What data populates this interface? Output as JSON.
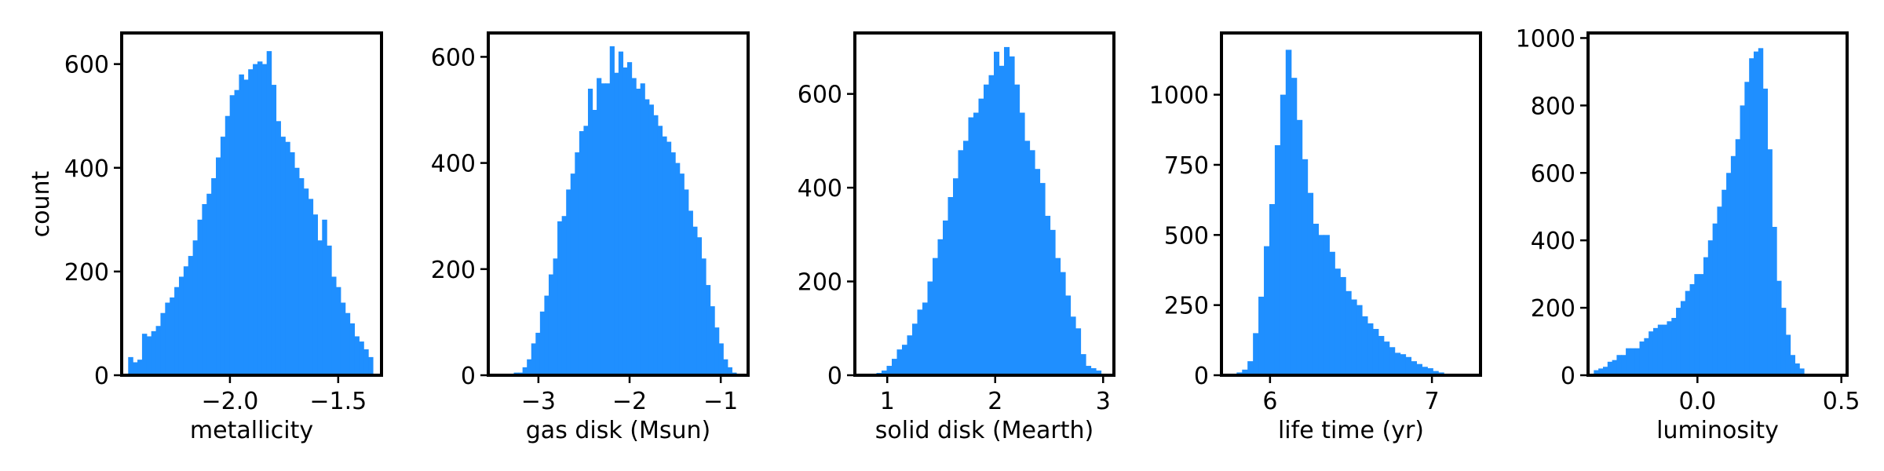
{
  "chart_data": [
    {
      "type": "bar",
      "histogram": true,
      "xlabel": "metallicity",
      "ylabel": "count",
      "xlim": [
        -2.5,
        -1.3
      ],
      "ylim": [
        0,
        660
      ],
      "xticks": [
        -2.0,
        -1.5
      ],
      "xtick_labels": [
        "−2.0",
        "−1.5"
      ],
      "yticks": [
        0,
        200,
        400,
        600
      ],
      "ytick_labels": [
        "0",
        "200",
        "400",
        "600"
      ],
      "bin_range": [
        -2.47,
        -1.34
      ],
      "counts": [
        35,
        25,
        30,
        80,
        75,
        85,
        95,
        120,
        140,
        150,
        170,
        190,
        210,
        230,
        260,
        300,
        330,
        350,
        380,
        420,
        460,
        500,
        540,
        550,
        580,
        570,
        590,
        600,
        605,
        600,
        625,
        560,
        490,
        460,
        450,
        430,
        400,
        380,
        360,
        340,
        310,
        260,
        300,
        250,
        190,
        170,
        140,
        120,
        100,
        75,
        65,
        50,
        35
      ],
      "bar_color": "#1f8fff"
    },
    {
      "type": "bar",
      "histogram": true,
      "xlabel": "gas disk (Msun)",
      "ylabel": "",
      "xlim": [
        -3.55,
        -0.7
      ],
      "ylim": [
        0,
        645
      ],
      "xticks": [
        -3,
        -2,
        -1
      ],
      "xtick_labels": [
        "−3",
        "−2",
        "−1"
      ],
      "yticks": [
        0,
        200,
        400,
        600
      ],
      "ytick_labels": [
        "0",
        "200",
        "400",
        "600"
      ],
      "bin_range": [
        -3.27,
        -0.83
      ],
      "counts": [
        5,
        5,
        15,
        30,
        60,
        80,
        120,
        150,
        190,
        220,
        290,
        300,
        350,
        380,
        420,
        460,
        470,
        540,
        500,
        560,
        550,
        550,
        620,
        570,
        610,
        580,
        590,
        560,
        540,
        550,
        520,
        510,
        490,
        470,
        450,
        440,
        420,
        400,
        380,
        350,
        310,
        280,
        260,
        220,
        170,
        130,
        90,
        60,
        30,
        15,
        5
      ],
      "bar_color": "#1f8fff"
    },
    {
      "type": "bar",
      "histogram": true,
      "xlabel": "solid disk (Mearth)",
      "ylabel": "",
      "xlim": [
        0.7,
        3.1
      ],
      "ylim": [
        0,
        730
      ],
      "xticks": [
        1,
        2,
        3
      ],
      "xtick_labels": [
        "1",
        "2",
        "3"
      ],
      "yticks": [
        0,
        200,
        400,
        600
      ],
      "ytick_labels": [
        "0",
        "200",
        "400",
        "600"
      ],
      "bin_range": [
        0.9,
        2.98
      ],
      "counts": [
        5,
        10,
        20,
        35,
        55,
        65,
        85,
        110,
        140,
        155,
        200,
        250,
        290,
        330,
        380,
        420,
        480,
        500,
        550,
        560,
        590,
        620,
        640,
        690,
        660,
        700,
        680,
        620,
        560,
        500,
        480,
        440,
        410,
        340,
        310,
        250,
        220,
        170,
        125,
        100,
        45,
        20,
        15,
        10
      ],
      "bar_color": "#1f8fff"
    },
    {
      "type": "bar",
      "histogram": true,
      "xlabel": "life time (yr)",
      "ylabel": "",
      "xlim": [
        5.7,
        7.3
      ],
      "ylim": [
        0,
        1220
      ],
      "xticks": [
        6,
        7
      ],
      "xtick_labels": [
        "6",
        "7"
      ],
      "yticks": [
        0,
        250,
        500,
        750,
        1000
      ],
      "ytick_labels": [
        "0",
        "250",
        "500",
        "750",
        "1000"
      ],
      "bin_range": [
        5.76,
        7.14
      ],
      "counts": [
        5,
        10,
        20,
        50,
        150,
        280,
        460,
        610,
        820,
        1000,
        1160,
        1060,
        910,
        770,
        650,
        540,
        500,
        500,
        440,
        380,
        350,
        300,
        270,
        250,
        210,
        185,
        165,
        140,
        120,
        100,
        80,
        75,
        65,
        50,
        40,
        30,
        25,
        15,
        10,
        5,
        5
      ],
      "bar_color": "#1f8fff"
    },
    {
      "type": "bar",
      "histogram": true,
      "xlabel": "luminosity",
      "ylabel": "",
      "xlim": [
        -0.38,
        0.52
      ],
      "ylim": [
        0,
        1015
      ],
      "xticks": [
        0.0,
        0.5
      ],
      "xtick_labels": [
        "0.0",
        "0.5"
      ],
      "yticks": [
        0,
        200,
        400,
        600,
        800,
        1000
      ],
      "ytick_labels": [
        "0",
        "200",
        "400",
        "600",
        "800",
        "1000"
      ],
      "bin_range": [
        -0.36,
        0.37
      ],
      "counts": [
        15,
        20,
        25,
        40,
        45,
        60,
        60,
        80,
        80,
        80,
        100,
        110,
        130,
        140,
        150,
        150,
        160,
        170,
        200,
        220,
        250,
        270,
        300,
        300,
        350,
        400,
        450,
        500,
        550,
        600,
        650,
        700,
        800,
        870,
        940,
        960,
        970,
        850,
        670,
        440,
        280,
        200,
        120,
        60,
        35,
        20
      ],
      "bar_color": "#1f8fff"
    }
  ]
}
